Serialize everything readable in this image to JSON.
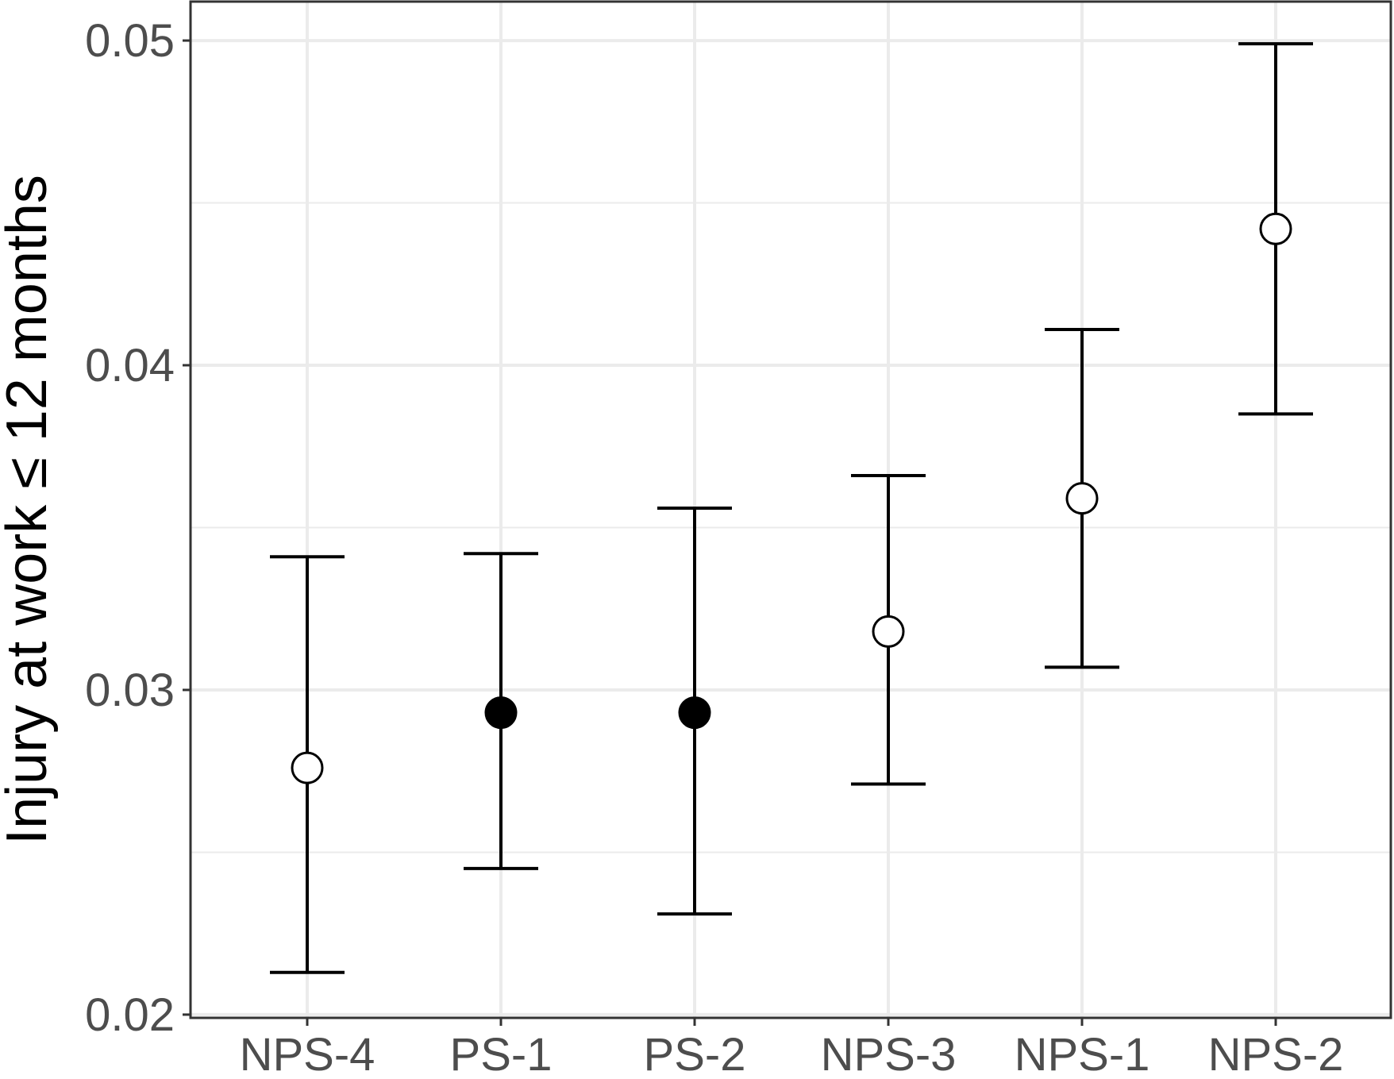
{
  "chart_data": {
    "type": "errorbar",
    "title": "",
    "xlabel": "",
    "ylabel": "Injury at work ≤ 12 months",
    "ylim": [
      0.0199,
      0.0512
    ],
    "y_ticks": [
      0.02,
      0.03,
      0.04,
      0.05
    ],
    "y_tick_labels": [
      "0.02",
      "0.03",
      "0.04",
      "0.05"
    ],
    "grid": true,
    "legend": "none",
    "categories": [
      "NPS-4",
      "PS-1",
      "PS-2",
      "NPS-3",
      "NPS-1",
      "NPS-2"
    ],
    "points": [
      {
        "category": "NPS-4",
        "estimate": 0.0276,
        "lower": 0.0213,
        "upper": 0.0341,
        "marker": "open-circle"
      },
      {
        "category": "PS-1",
        "estimate": 0.0293,
        "lower": 0.0245,
        "upper": 0.0342,
        "marker": "filled-circle"
      },
      {
        "category": "PS-2",
        "estimate": 0.0293,
        "lower": 0.0231,
        "upper": 0.0356,
        "marker": "filled-circle"
      },
      {
        "category": "NPS-3",
        "estimate": 0.0318,
        "lower": 0.0271,
        "upper": 0.0366,
        "marker": "open-circle"
      },
      {
        "category": "NPS-1",
        "estimate": 0.0359,
        "lower": 0.0307,
        "upper": 0.0411,
        "marker": "open-circle"
      },
      {
        "category": "NPS-2",
        "estimate": 0.0442,
        "lower": 0.0385,
        "upper": 0.0499,
        "marker": "open-circle"
      }
    ],
    "colors": {
      "marker": "#000000",
      "grid": "#ebebeb",
      "border": "#333333",
      "tick_text": "#4d4d4d",
      "background": "#ffffff"
    }
  }
}
